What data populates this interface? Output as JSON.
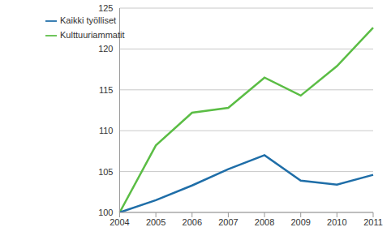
{
  "chart_data": {
    "type": "line",
    "categories": [
      "2004",
      "2005",
      "2006",
      "2007",
      "2008",
      "2009",
      "2010",
      "2011"
    ],
    "series": [
      {
        "name": "Kulttuuriammatit",
        "color": "#5bbd45",
        "values": [
          100,
          108.2,
          112.2,
          112.8,
          116.5,
          114.3,
          117.9,
          122.6
        ]
      },
      {
        "name": "Kaikki työlliset",
        "color": "#1f6ea8",
        "values": [
          100,
          101.5,
          103.3,
          105.3,
          107.0,
          103.9,
          103.4,
          104.6
        ]
      }
    ],
    "ylim": [
      100,
      125
    ],
    "yticks": [
      100,
      105,
      110,
      115,
      120,
      125
    ],
    "grid": true,
    "legend": "upper left"
  }
}
